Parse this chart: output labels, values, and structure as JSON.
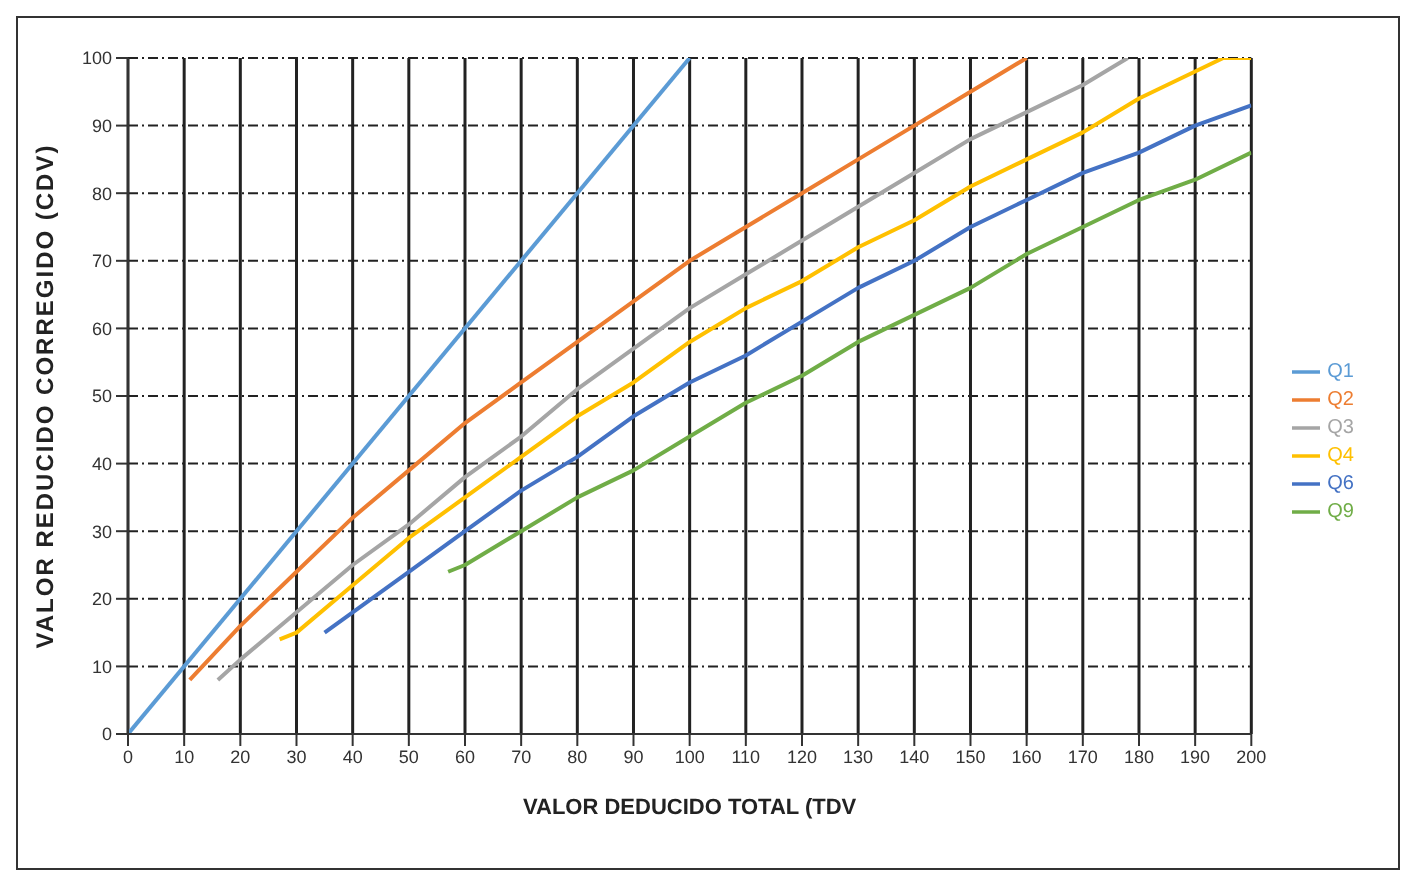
{
  "chart_data": {
    "type": "line",
    "xlabel": "VALOR DEDUCIDO  TOTAL (TDV",
    "ylabel": "VALOR REDUCIDO  CORREGIDO  (CDV)",
    "xlim": [
      0,
      200
    ],
    "ylim": [
      0,
      100
    ],
    "xticks": [
      0,
      10,
      20,
      30,
      40,
      50,
      60,
      70,
      80,
      90,
      100,
      110,
      120,
      130,
      140,
      150,
      160,
      170,
      180,
      190,
      200
    ],
    "yticks": [
      0,
      10,
      20,
      30,
      40,
      50,
      60,
      70,
      80,
      90,
      100
    ],
    "grid": true,
    "legend": "right",
    "marker": "none",
    "line_style": "solid",
    "series": [
      {
        "name": "Q1",
        "color": "#5b9bd5",
        "x": [
          0,
          100
        ],
        "values": [
          0,
          100
        ]
      },
      {
        "name": "Q2",
        "color": "#ed7d31",
        "x": [
          11,
          20,
          30,
          40,
          50,
          60,
          70,
          80,
          90,
          100,
          110,
          120,
          130,
          140,
          150,
          160
        ],
        "values": [
          8,
          16,
          24,
          32,
          39,
          46,
          52,
          58,
          64,
          70,
          75,
          80,
          85,
          90,
          95,
          100
        ]
      },
      {
        "name": "Q3",
        "color": "#a5a5a5",
        "x": [
          16,
          20,
          30,
          40,
          50,
          60,
          70,
          80,
          90,
          100,
          110,
          120,
          130,
          140,
          150,
          160,
          170,
          178
        ],
        "values": [
          8,
          11,
          18,
          25,
          31,
          38,
          44,
          51,
          57,
          63,
          68,
          73,
          78,
          83,
          88,
          92,
          96,
          100
        ]
      },
      {
        "name": "Q4",
        "color": "#ffc000",
        "x": [
          27,
          30,
          40,
          50,
          60,
          70,
          80,
          90,
          100,
          110,
          120,
          130,
          140,
          150,
          160,
          170,
          180,
          190,
          195,
          200
        ],
        "values": [
          14,
          15,
          22,
          29,
          35,
          41,
          47,
          52,
          58,
          63,
          67,
          72,
          76,
          81,
          85,
          89,
          94,
          98,
          100,
          100
        ]
      },
      {
        "name": "Q6",
        "color": "#4472c4",
        "x": [
          35,
          40,
          50,
          60,
          70,
          80,
          90,
          100,
          110,
          120,
          130,
          140,
          150,
          160,
          170,
          180,
          190,
          200
        ],
        "values": [
          15,
          18,
          24,
          30,
          36,
          41,
          47,
          52,
          56,
          61,
          66,
          70,
          75,
          79,
          83,
          86,
          90,
          93
        ]
      },
      {
        "name": "Q9",
        "color": "#70ad47",
        "x": [
          57,
          60,
          70,
          80,
          90,
          100,
          110,
          120,
          130,
          140,
          150,
          160,
          170,
          180,
          190,
          200
        ],
        "values": [
          24,
          25,
          30,
          35,
          39,
          44,
          49,
          53,
          58,
          62,
          66,
          71,
          75,
          79,
          82,
          86
        ]
      }
    ]
  }
}
